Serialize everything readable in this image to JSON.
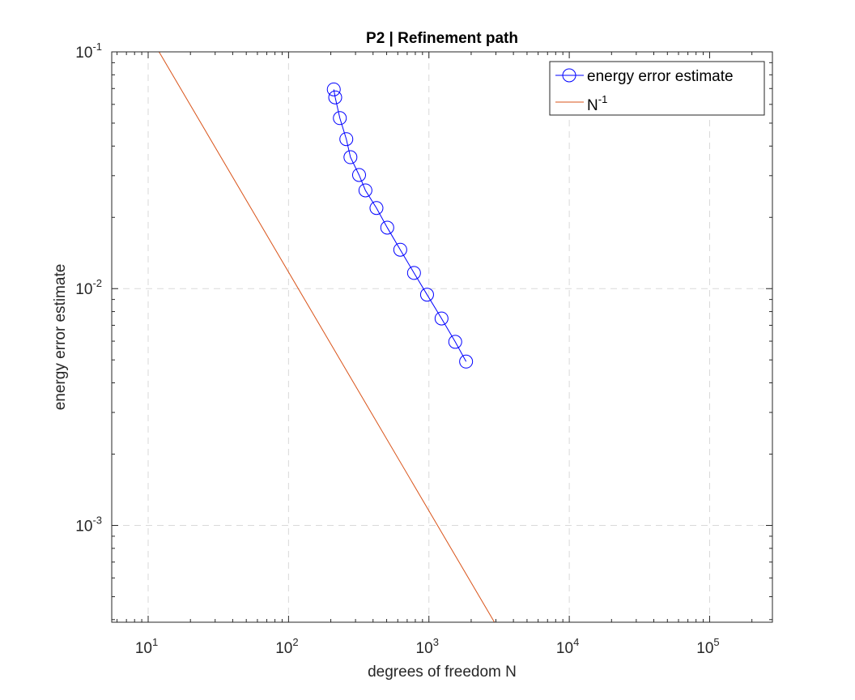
{
  "chart_data": {
    "type": "line",
    "title": "P2 | Refinement path",
    "xlabel": "degrees of freedom N",
    "ylabel": "energy error estimate",
    "xscale": "log",
    "yscale": "log",
    "xlim": [
      5.5,
      280000
    ],
    "ylim": [
      0.00039,
      0.1
    ],
    "grid": true,
    "legend_position": "top-right",
    "x_ticks": [
      {
        "base": "10",
        "exp": "1",
        "value": 10
      },
      {
        "base": "10",
        "exp": "2",
        "value": 100
      },
      {
        "base": "10",
        "exp": "3",
        "value": 1000
      },
      {
        "base": "10",
        "exp": "4",
        "value": 10000
      },
      {
        "base": "10",
        "exp": "5",
        "value": 100000
      }
    ],
    "y_ticks": [
      {
        "base": "10",
        "exp": "-1",
        "value": 0.1
      },
      {
        "base": "10",
        "exp": "-2",
        "value": 0.01
      },
      {
        "base": "10",
        "exp": "-3",
        "value": 0.001
      }
    ],
    "series": [
      {
        "name": "energy error estimate",
        "color": "#0000ff",
        "marker": "circle",
        "x": [
          210,
          215,
          232,
          258,
          276,
          318,
          353,
          423,
          505,
          625,
          783,
          970,
          1230,
          1540,
          1840
        ],
        "y": [
          0.0694,
          0.0642,
          0.0525,
          0.0428,
          0.0359,
          0.0302,
          0.026,
          0.0219,
          0.0181,
          0.0146,
          0.01165,
          0.00943,
          0.00748,
          0.00596,
          0.00492
        ]
      },
      {
        "name_base": "N",
        "name_exp": "-1",
        "color": "#d95319",
        "marker": "none",
        "x": [
          11.95,
          2930
        ],
        "y": [
          0.1,
          0.00039
        ]
      }
    ]
  }
}
